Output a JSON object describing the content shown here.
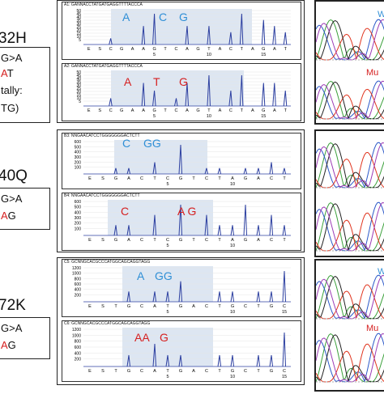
{
  "colors": {
    "wt": "#2f8fd6",
    "mut": "#d52020",
    "peak": "#2c3fa0",
    "shade": "#dde6f2"
  },
  "left": {
    "m1": {
      "title": "32H",
      "lines": [
        "G>A",
        "AT",
        "tally:",
        "TG)"
      ]
    },
    "m2": {
      "title": "40Q",
      "lines": [
        "G>A",
        "AG"
      ]
    },
    "m3": {
      "title": "72K",
      "lines": [
        "G>A",
        "AG"
      ]
    }
  },
  "pyro": [
    {
      "id": "A1",
      "header": "A1: GANNACCTATGATGAGGTTTTACCCA",
      "seq": [
        "E",
        "S",
        "C",
        "G",
        "A",
        "A",
        "G",
        "T",
        "C",
        "A",
        "G",
        "T",
        "A",
        "C",
        "T",
        "A",
        "G",
        "A",
        "T"
      ],
      "ticks": [
        "5",
        "10",
        "15"
      ],
      "letters": [
        {
          "t": "A",
          "c": "wt"
        },
        {
          "t": "C",
          "c": "wt"
        },
        {
          "t": "G",
          "c": "wt"
        }
      ],
      "yticks": [
        "50",
        "45",
        "40",
        "35",
        "30",
        "25",
        "20",
        "15",
        "10",
        "5"
      ],
      "peaks": [
        0,
        0,
        1,
        0,
        0,
        3,
        5,
        0,
        0,
        3,
        0,
        3,
        0,
        2,
        5,
        0,
        4,
        3,
        2
      ]
    },
    {
      "id": "A2",
      "header": "A2: GANNACCTATGATGAGGTTTTACCCA",
      "seq": [
        "E",
        "S",
        "C",
        "G",
        "A",
        "A",
        "G",
        "T",
        "C",
        "A",
        "G",
        "T",
        "A",
        "C",
        "T",
        "A",
        "G",
        "A",
        "T"
      ],
      "ticks": [
        "5",
        "10",
        "15"
      ],
      "letters": [
        {
          "t": "A",
          "c": "mut"
        },
        {
          "t": "T",
          "c": "mut"
        },
        {
          "t": "G",
          "c": "mut"
        }
      ],
      "yticks": [
        "50",
        "45",
        "40",
        "35",
        "30",
        "25",
        "20",
        "15",
        "10",
        "5"
      ],
      "peaks": [
        0,
        0,
        1,
        0,
        0,
        3,
        2,
        0,
        1,
        3,
        0,
        4,
        0,
        2,
        4,
        0,
        3,
        3,
        2
      ]
    },
    {
      "id": "B3",
      "header": "B3: NNGAACATCCTGGGGGGGACTCTT",
      "seq": [
        "E",
        "S",
        "G",
        "A",
        "C",
        "T",
        "C",
        "G",
        "T",
        "C",
        "T",
        "A",
        "G",
        "A",
        "C",
        "T"
      ],
      "ticks": [
        "5",
        "10"
      ],
      "letters": [
        {
          "t": "C",
          "c": "wt"
        },
        {
          "t": "GG",
          "c": "wt"
        }
      ],
      "yticks": [
        "600",
        "500",
        "400",
        "300",
        "200",
        "100"
      ],
      "peaks": [
        0,
        0,
        1,
        1,
        0,
        2,
        0,
        5,
        0,
        1,
        1,
        0,
        1,
        1,
        2,
        1
      ]
    },
    {
      "id": "B4",
      "header": "B4: NNGAACATCCTGGGGGGGACTCTT",
      "seq": [
        "E",
        "S",
        "G",
        "A",
        "C",
        "T",
        "C",
        "G",
        "T",
        "C",
        "T",
        "A",
        "G",
        "A",
        "C",
        "T"
      ],
      "ticks": [
        "5",
        "10"
      ],
      "letters": [
        {
          "t": "C",
          "c": "mut"
        },
        {
          "t": "A G",
          "c": "mut"
        }
      ],
      "yticks": [
        "600",
        "500",
        "400",
        "300",
        "200",
        "100"
      ],
      "peaks": [
        0,
        0,
        1,
        1,
        0,
        2,
        0,
        3,
        0,
        2,
        1,
        1,
        3,
        1,
        2,
        1
      ]
    },
    {
      "id": "C5",
      "header": "C5: GCNNGCACGCCCATGGCAGCAGGTAGG",
      "seq": [
        "E",
        "S",
        "T",
        "G",
        "C",
        "A",
        "T",
        "G",
        "A",
        "C",
        "T",
        "G",
        "C",
        "T",
        "G",
        "C"
      ],
      "ticks": [
        "5",
        "10",
        "15"
      ],
      "letters": [
        {
          "t": "A",
          "c": "wt"
        },
        {
          "t": "GG",
          "c": "wt"
        }
      ],
      "yticks": [
        "1200",
        "1000",
        "800",
        "600",
        "400",
        "200"
      ],
      "peaks": [
        0,
        0,
        0,
        1,
        0,
        1,
        1,
        2,
        0,
        0,
        1,
        1,
        0,
        1,
        1,
        3
      ]
    },
    {
      "id": "C6",
      "header": "C6: GCNNGCACGCCCATGGCAGCAGGTAGG",
      "seq": [
        "E",
        "S",
        "T",
        "G",
        "C",
        "A",
        "T",
        "G",
        "A",
        "C",
        "T",
        "G",
        "C",
        "T",
        "G",
        "C"
      ],
      "ticks": [
        "5",
        "10",
        "15"
      ],
      "letters": [
        {
          "t": "AA",
          "c": "mut"
        },
        {
          "t": "G",
          "c": "mut"
        }
      ],
      "yticks": [
        "1200",
        "1000",
        "800",
        "600",
        "400",
        "200"
      ],
      "peaks": [
        0,
        0,
        0,
        1,
        0,
        2,
        1,
        1,
        0,
        0,
        1,
        1,
        0,
        1,
        1,
        3
      ]
    }
  ],
  "traces": [
    {
      "top_label": "W",
      "bottom_label": "Mu"
    },
    {
      "top_label": "",
      "bottom_label": ""
    },
    {
      "top_label": "W",
      "bottom_label": "Mu"
    }
  ]
}
